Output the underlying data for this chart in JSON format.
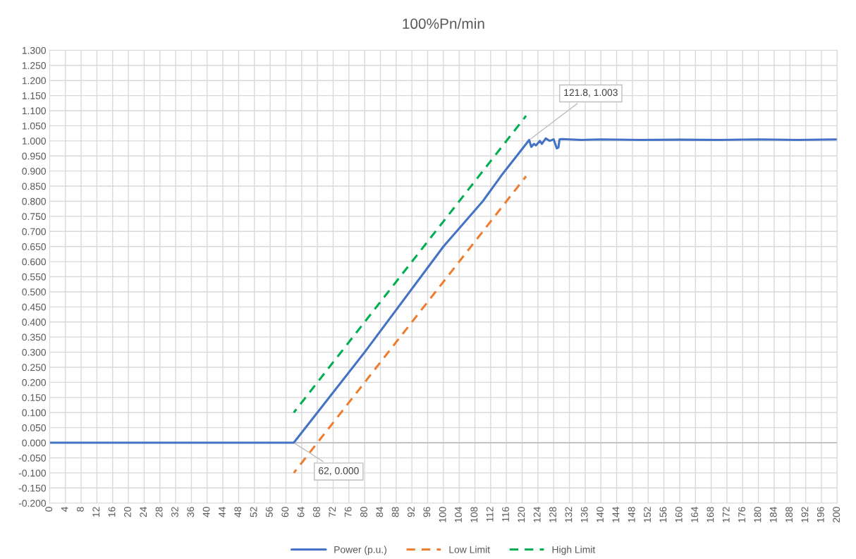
{
  "chart_data": {
    "type": "line",
    "title": "100%Pn/min",
    "series": [
      {
        "name": "Power (p.u.)",
        "color": "#4472c4",
        "line_style": "solid",
        "x": [
          0,
          62,
          80,
          100,
          110,
          115,
          121.8,
          122.3,
          123,
          123.5,
          124.5,
          125,
          126,
          127,
          128,
          128.8,
          129.2,
          129.5,
          130,
          135,
          140,
          150,
          160,
          170,
          180,
          190,
          200
        ],
        "values": [
          0,
          0,
          0.3,
          0.65,
          0.8,
          0.89,
          1.003,
          0.98,
          0.99,
          0.985,
          1.0,
          0.99,
          1.008,
          1.0,
          1.005,
          0.975,
          0.978,
          1.005,
          1.006,
          1.003,
          1.005,
          1.003,
          1.004,
          1.003,
          1.005,
          1.003,
          1.005
        ]
      },
      {
        "name": "Low Limit",
        "color": "#ed7d31",
        "line_style": "dashed",
        "x": [
          62,
          121
        ],
        "values": [
          -0.1,
          0.883
        ]
      },
      {
        "name": "High Limit",
        "color": "#00b050",
        "line_style": "dashed",
        "x": [
          62,
          121
        ],
        "values": [
          0.1,
          1.083
        ]
      }
    ],
    "annotations": [
      {
        "text": "62, 0.000",
        "x": 62,
        "y": 0.0
      },
      {
        "text": "121.8, 1.003",
        "x": 121.8,
        "y": 1.003
      }
    ],
    "xlim": [
      0,
      200
    ],
    "xticks": [
      0,
      4,
      8,
      12,
      16,
      20,
      24,
      28,
      32,
      36,
      40,
      44,
      48,
      52,
      56,
      60,
      64,
      68,
      72,
      76,
      80,
      84,
      88,
      92,
      96,
      100,
      104,
      108,
      112,
      116,
      120,
      124,
      128,
      132,
      136,
      140,
      144,
      148,
      152,
      156,
      160,
      164,
      168,
      172,
      176,
      180,
      184,
      188,
      192,
      196,
      200
    ],
    "ylim": [
      -0.2,
      1.3
    ],
    "yticks": [
      {
        "value": -0.2,
        "label": "-0.200"
      },
      {
        "value": -0.15,
        "label": "-0.150"
      },
      {
        "value": -0.1,
        "label": "-0.100"
      },
      {
        "value": -0.05,
        "label": "-0.050"
      },
      {
        "value": 0,
        "label": "0.000"
      },
      {
        "value": 0.05,
        "label": "0.050"
      },
      {
        "value": 0.1,
        "label": "0.100"
      },
      {
        "value": 0.15,
        "label": "0.150"
      },
      {
        "value": 0.2,
        "label": "0.200"
      },
      {
        "value": 0.25,
        "label": "0.250"
      },
      {
        "value": 0.3,
        "label": "0.300"
      },
      {
        "value": 0.35,
        "label": "0.350"
      },
      {
        "value": 0.4,
        "label": "0.400"
      },
      {
        "value": 0.45,
        "label": "0.450"
      },
      {
        "value": 0.5,
        "label": "0.500"
      },
      {
        "value": 0.55,
        "label": "0.550"
      },
      {
        "value": 0.6,
        "label": "0.600"
      },
      {
        "value": 0.65,
        "label": "0.650"
      },
      {
        "value": 0.7,
        "label": "0.700"
      },
      {
        "value": 0.75,
        "label": "0.750"
      },
      {
        "value": 0.8,
        "label": "0.800"
      },
      {
        "value": 0.85,
        "label": "0.850"
      },
      {
        "value": 0.9,
        "label": "0.900"
      },
      {
        "value": 0.95,
        "label": "0.950"
      },
      {
        "value": 1.0,
        "label": "1.000"
      },
      {
        "value": 1.05,
        "label": "1.050"
      },
      {
        "value": 1.1,
        "label": "1.100"
      },
      {
        "value": 1.15,
        "label": "1.150"
      },
      {
        "value": 1.2,
        "label": "1.200"
      },
      {
        "value": 1.25,
        "label": "1.250"
      },
      {
        "value": 1.3,
        "label": "1.300"
      }
    ],
    "grid": true,
    "legend": "bottom",
    "marker": "none"
  }
}
